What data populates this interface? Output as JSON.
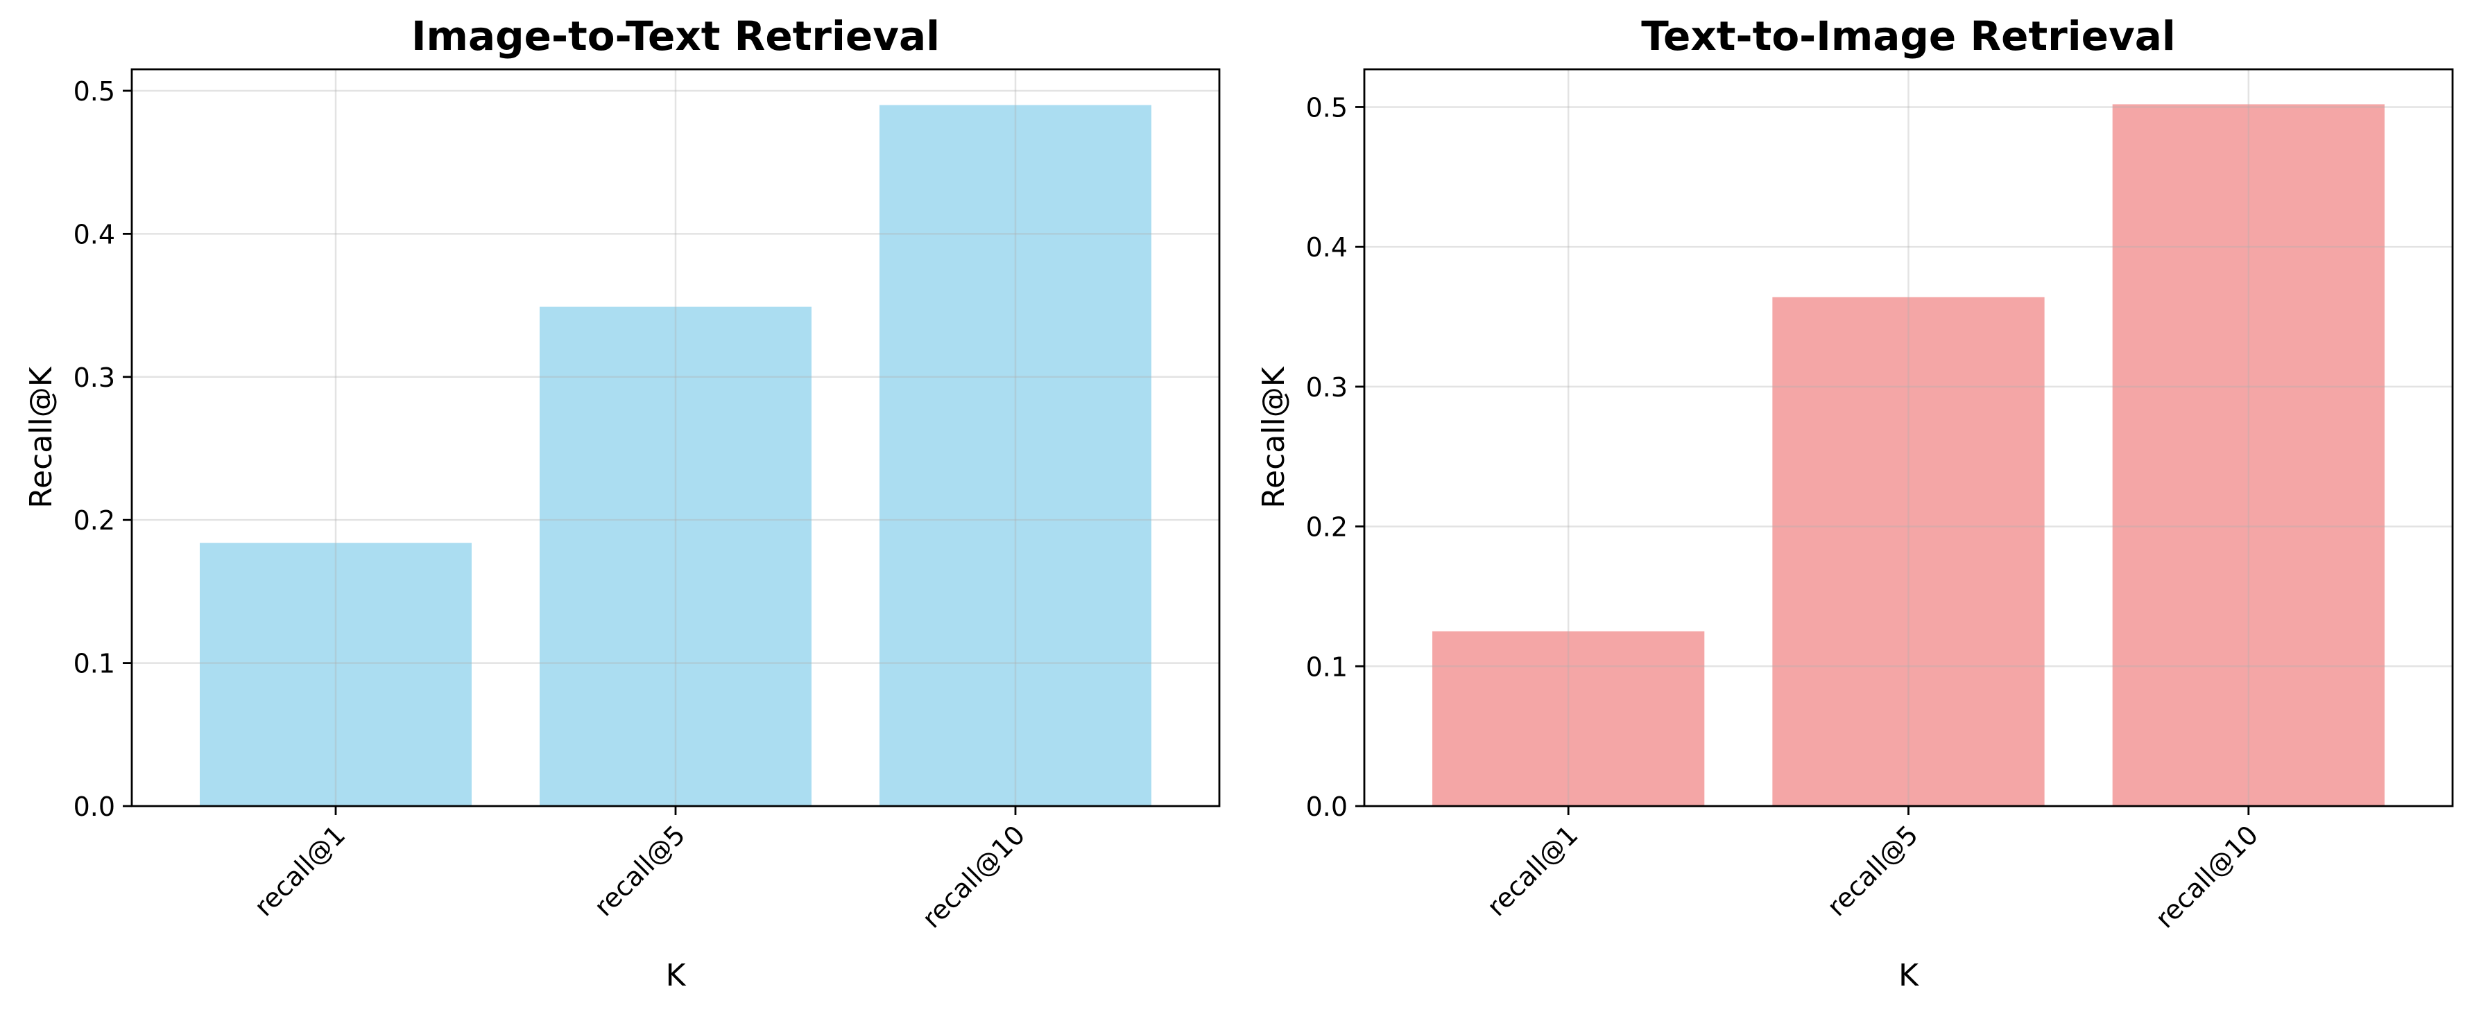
{
  "chart_data": [
    {
      "type": "bar",
      "title": "Image-to-Text Retrieval",
      "xlabel": "K",
      "ylabel": "Recall@K",
      "categories": [
        "recall@1",
        "recall@5",
        "recall@10"
      ],
      "values": [
        0.184,
        0.349,
        0.49
      ],
      "ylim": [
        0,
        0.515
      ],
      "yticks": [
        0.0,
        0.1,
        0.2,
        0.3,
        0.4,
        0.5
      ],
      "ytick_labels": [
        "0.0",
        "0.1",
        "0.2",
        "0.3",
        "0.4",
        "0.5"
      ],
      "color": "#87CEEB",
      "grid": true
    },
    {
      "type": "bar",
      "title": "Text-to-Image Retrieval",
      "xlabel": "K",
      "ylabel": "Recall@K",
      "categories": [
        "recall@1",
        "recall@5",
        "recall@10"
      ],
      "values": [
        0.125,
        0.364,
        0.502
      ],
      "ylim": [
        0,
        0.527
      ],
      "yticks": [
        0.0,
        0.1,
        0.2,
        0.3,
        0.4,
        0.5
      ],
      "ytick_labels": [
        "0.0",
        "0.1",
        "0.2",
        "0.3",
        "0.4",
        "0.5"
      ],
      "color": "#F08080",
      "grid": true
    }
  ]
}
